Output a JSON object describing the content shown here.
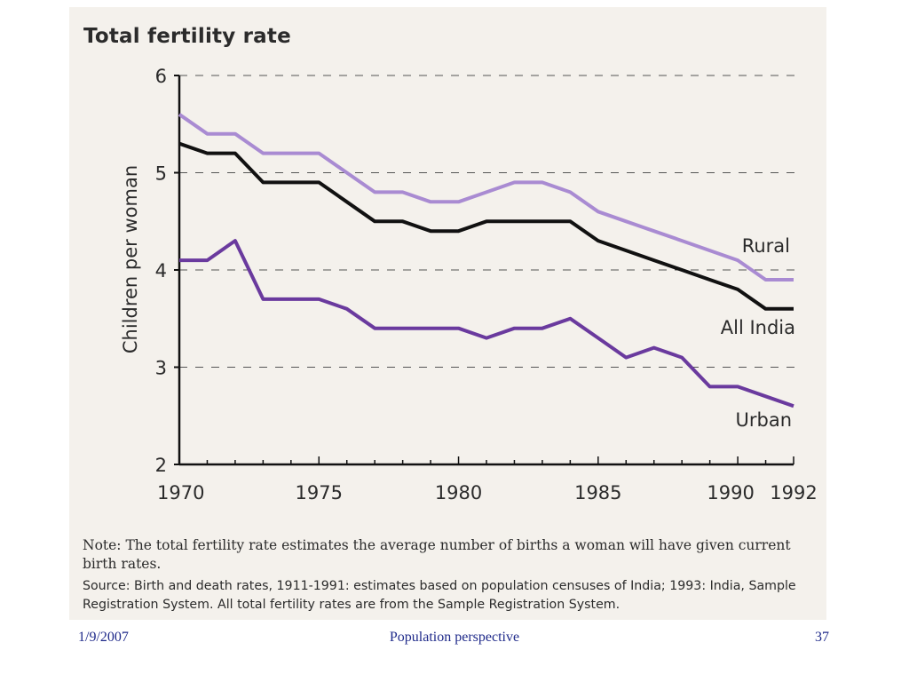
{
  "chart_data": {
    "type": "line",
    "title": "Total fertility rate",
    "ylabel": "Children per woman",
    "xlabel": "",
    "xlim": [
      1970,
      1992
    ],
    "ylim": [
      2,
      6
    ],
    "x_ticks": [
      1970,
      1975,
      1980,
      1985,
      1990,
      1992
    ],
    "y_ticks": [
      2,
      3,
      4,
      5,
      6
    ],
    "grid": "dashed horizontal",
    "legend": "inline labels at right end of lines",
    "x": [
      1970,
      1971,
      1972,
      1973,
      1974,
      1975,
      1976,
      1977,
      1978,
      1979,
      1980,
      1981,
      1982,
      1983,
      1984,
      1985,
      1986,
      1987,
      1988,
      1989,
      1990,
      1991,
      1992
    ],
    "series": [
      {
        "name": "Rural",
        "color": "#a98bd2",
        "values": [
          5.6,
          5.4,
          5.4,
          5.2,
          5.2,
          5.2,
          5.0,
          4.8,
          4.8,
          4.7,
          4.7,
          4.8,
          4.9,
          4.9,
          4.8,
          4.6,
          4.5,
          4.4,
          4.3,
          4.2,
          4.1,
          3.9,
          3.9
        ]
      },
      {
        "name": "All India",
        "color": "#111111",
        "values": [
          5.3,
          5.2,
          5.2,
          4.9,
          4.9,
          4.9,
          4.7,
          4.5,
          4.5,
          4.4,
          4.4,
          4.5,
          4.5,
          4.5,
          4.5,
          4.3,
          4.2,
          4.1,
          4.0,
          3.9,
          3.8,
          3.6,
          3.6
        ]
      },
      {
        "name": "Urban",
        "color": "#6a3a9e",
        "values": [
          4.1,
          4.1,
          4.3,
          3.7,
          3.7,
          3.7,
          3.6,
          3.4,
          3.4,
          3.4,
          3.4,
          3.3,
          3.4,
          3.4,
          3.5,
          3.3,
          3.1,
          3.2,
          3.1,
          2.8,
          2.8,
          2.7,
          2.6
        ]
      }
    ]
  },
  "note": "Note: The total fertility rate estimates the average number of births a woman will have given current birth rates.",
  "source": "Source: Birth and death rates, 1911-1991: estimates based on population censuses of India; 1993: India, Sample Registration System. All total fertility rates are from the Sample Registration System.",
  "footer": {
    "date": "1/9/2007",
    "title": "Population perspective",
    "page": "37"
  }
}
